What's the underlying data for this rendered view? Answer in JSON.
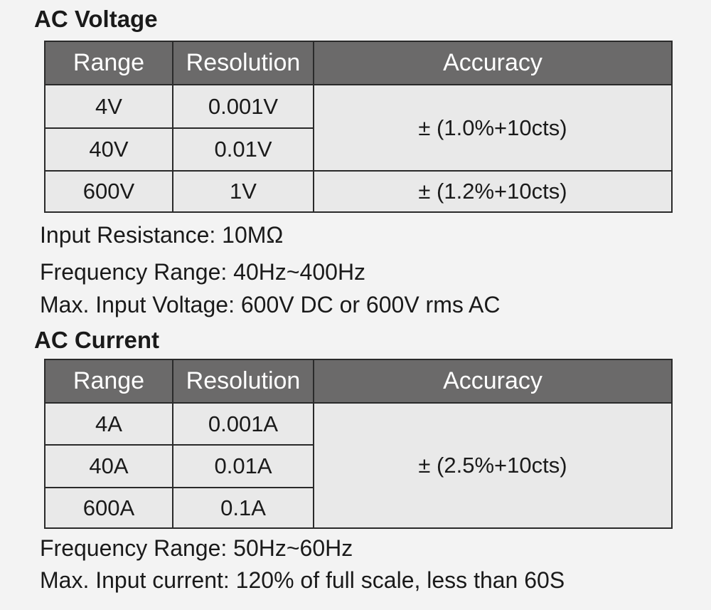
{
  "ac_voltage": {
    "title": "AC Voltage",
    "headers": [
      "Range",
      "Resolution",
      "Accuracy"
    ],
    "rows": [
      {
        "range": "4V",
        "resolution": "0.001V"
      },
      {
        "range": "40V",
        "resolution": "0.01V"
      },
      {
        "range": "600V",
        "resolution": "1V"
      }
    ],
    "accuracy": [
      "± (1.0%+10cts)",
      "± (1.2%+10cts)"
    ],
    "notes": [
      "Input Resistance:  10MΩ",
      "Frequency Range:  40Hz~400Hz",
      "Max. Input Voltage:  600V DC or 600V rms AC"
    ]
  },
  "ac_current": {
    "title": "AC Current",
    "headers": [
      "Range",
      "Resolution",
      "Accuracy"
    ],
    "rows": [
      {
        "range": "4A",
        "resolution": "0.001A"
      },
      {
        "range": "40A",
        "resolution": "0.01A"
      },
      {
        "range": "600A",
        "resolution": "0.1A"
      }
    ],
    "accuracy": [
      "± (2.5%+10cts)"
    ],
    "notes": [
      "Frequency Range:  50Hz~60Hz",
      "Max. Input current: 120% of full scale, less than 60S"
    ]
  }
}
